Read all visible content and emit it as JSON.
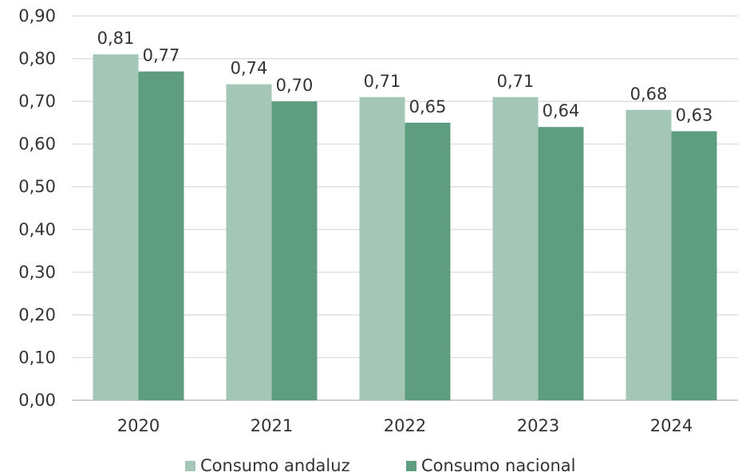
{
  "chart_data": {
    "type": "bar",
    "title": "",
    "xlabel": "",
    "ylabel": "",
    "categories": [
      "2020",
      "2021",
      "2022",
      "2023",
      "2024"
    ],
    "series": [
      {
        "name": "Consumo andaluz",
        "values": [
          0.81,
          0.74,
          0.71,
          0.71,
          0.68
        ],
        "labels": [
          "0,81",
          "0,74",
          "0,71",
          "0,71",
          "0,68"
        ],
        "color": "#a3c6b6"
      },
      {
        "name": "Consumo nacional",
        "values": [
          0.77,
          0.7,
          0.65,
          0.64,
          0.63
        ],
        "labels": [
          "0,77",
          "0,70",
          "0,65",
          "0,64",
          "0,63"
        ],
        "color": "#5f9d80"
      }
    ],
    "ylim": [
      0,
      0.9
    ],
    "yticks": [
      0.0,
      0.1,
      0.2,
      0.3,
      0.4,
      0.5,
      0.6,
      0.7,
      0.8,
      0.9
    ],
    "ytick_labels": [
      "0,00",
      "0,10",
      "0,20",
      "0,30",
      "0,40",
      "0,50",
      "0,60",
      "0,70",
      "0,80",
      "0,90"
    ],
    "grid": true,
    "legend_position": "bottom"
  }
}
